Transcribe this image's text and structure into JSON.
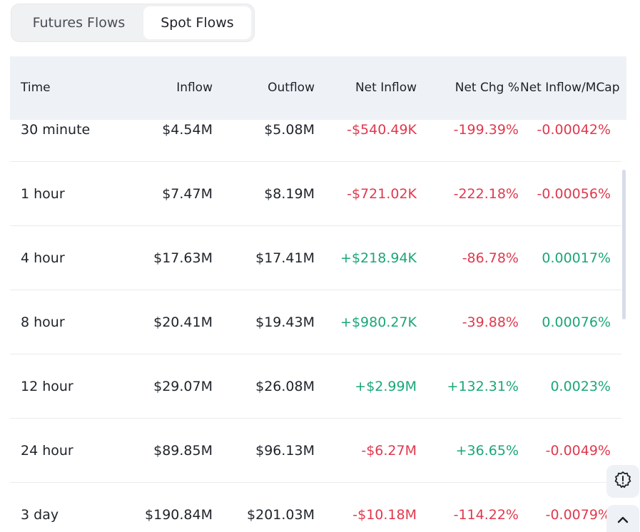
{
  "tabs": [
    {
      "label": "Futures Flows",
      "active": false
    },
    {
      "label": "Spot Flows",
      "active": true
    }
  ],
  "table": {
    "headers": {
      "time": "Time",
      "inflow": "Inflow",
      "outflow": "Outflow",
      "net_inflow": "Net Inflow",
      "net_chg": "Net Chg %",
      "net_inflow_mcap": "Net Inflow/MCap"
    },
    "rows": [
      {
        "time": "30 minute",
        "inflow": "$4.54M",
        "outflow": "$5.08M",
        "net_inflow": "-$540.49K",
        "net_chg": "-199.39%",
        "mcap": "-0.00042%"
      },
      {
        "time": "1 hour",
        "inflow": "$7.47M",
        "outflow": "$8.19M",
        "net_inflow": "-$721.02K",
        "net_chg": "-222.18%",
        "mcap": "-0.00056%"
      },
      {
        "time": "4 hour",
        "inflow": "$17.63M",
        "outflow": "$17.41M",
        "net_inflow": "+$218.94K",
        "net_chg": "-86.78%",
        "mcap": "0.00017%"
      },
      {
        "time": "8 hour",
        "inflow": "$20.41M",
        "outflow": "$19.43M",
        "net_inflow": "+$980.27K",
        "net_chg": "-39.88%",
        "mcap": "0.00076%"
      },
      {
        "time": "12 hour",
        "inflow": "$29.07M",
        "outflow": "$26.08M",
        "net_inflow": "+$2.99M",
        "net_chg": "+132.31%",
        "mcap": "0.0023%"
      },
      {
        "time": "24 hour",
        "inflow": "$89.85M",
        "outflow": "$96.13M",
        "net_inflow": "-$6.27M",
        "net_chg": "+36.65%",
        "mcap": "-0.0049%"
      },
      {
        "time": "3 day",
        "inflow": "$190.84M",
        "outflow": "$201.03M",
        "net_inflow": "-$10.18M",
        "net_chg": "-114.22%",
        "mcap": "-0.0079%"
      }
    ]
  },
  "colors": {
    "positive": "#1aa67a",
    "negative": "#e0394d",
    "header_bg": "#eef1f6"
  },
  "icons": {
    "feedback": "feedback-badge-icon",
    "scroll_top": "chevron-up-icon"
  }
}
